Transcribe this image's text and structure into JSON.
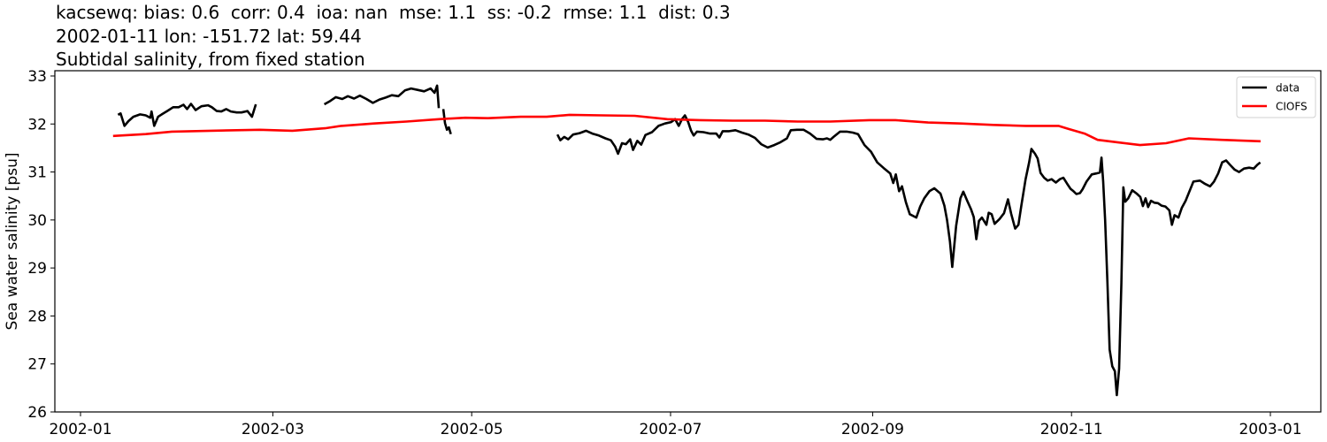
{
  "title": {
    "line1": "kacsewq: bias: 0.6  corr: 0.4  ioa: nan  mse: 1.1  ss: -0.2  rmse: 1.1  dist: 0.3",
    "line2": "2002-01-11 lon: -151.72 lat: 59.44",
    "line3": "Subtidal salinity, from fixed station"
  },
  "legend": {
    "items": [
      {
        "label": "data",
        "color": "#000000"
      },
      {
        "label": "CIOFS",
        "color": "#ff0000"
      }
    ]
  },
  "chart_data": {
    "type": "line",
    "title": "kacsewq: bias: 0.6  corr: 0.4  ioa: nan  mse: 1.1  ss: -0.2  rmse: 1.1  dist: 0.3 / 2002-01-11 lon: -151.72 lat: 59.44 / Subtidal salinity, from fixed station",
    "xlabel": "",
    "ylabel": "Sea water salinity [psu]",
    "ylim": [
      26,
      33.1
    ],
    "yticks": [
      26,
      27,
      28,
      29,
      30,
      31,
      32,
      33
    ],
    "xticks": [
      "2002-01",
      "2002-03",
      "2002-05",
      "2002-07",
      "2002-09",
      "2002-11",
      "2003-01"
    ],
    "xticks_day": [
      0,
      59,
      120,
      181,
      243,
      304,
      365
    ],
    "x_units": "days since 2002-01-01",
    "xlim_day": [
      -7.8,
      381.8
    ],
    "grid": false,
    "legend_position": "upper right",
    "series": [
      {
        "name": "data",
        "color": "#000000",
        "segments": [
          [
            [
              11.5,
              32.19
            ],
            [
              12.3,
              32.22
            ],
            [
              13.5,
              31.96
            ],
            [
              14.7,
              32.06
            ],
            [
              16.2,
              32.15
            ],
            [
              18.3,
              32.2
            ],
            [
              20.0,
              32.18
            ],
            [
              21.4,
              32.13
            ],
            [
              21.8,
              32.26
            ],
            [
              22.6,
              31.96
            ],
            [
              23.8,
              32.15
            ],
            [
              24.9,
              32.2
            ],
            [
              26.6,
              32.27
            ],
            [
              28.4,
              32.35
            ],
            [
              30.1,
              32.35
            ],
            [
              31.6,
              32.4
            ],
            [
              32.7,
              32.31
            ],
            [
              33.9,
              32.42
            ],
            [
              35.3,
              32.29
            ],
            [
              37.1,
              32.37
            ],
            [
              39.1,
              32.39
            ],
            [
              40.3,
              32.35
            ],
            [
              41.8,
              32.27
            ],
            [
              43.2,
              32.26
            ],
            [
              44.7,
              32.31
            ],
            [
              46.1,
              32.26
            ],
            [
              47.9,
              32.24
            ],
            [
              49.4,
              32.24
            ],
            [
              51.2,
              32.27
            ],
            [
              52.6,
              32.15
            ],
            [
              53.8,
              32.41
            ]
          ],
          [
            [
              74.8,
              32.41
            ],
            [
              76.6,
              32.48
            ],
            [
              78.3,
              32.56
            ],
            [
              80.3,
              32.52
            ],
            [
              82.0,
              32.58
            ],
            [
              83.9,
              32.53
            ],
            [
              85.7,
              32.59
            ],
            [
              87.7,
              32.52
            ],
            [
              89.7,
              32.44
            ],
            [
              91.7,
              32.51
            ],
            [
              93.6,
              32.55
            ],
            [
              95.5,
              32.6
            ],
            [
              97.5,
              32.58
            ],
            [
              99.5,
              32.7
            ],
            [
              101.4,
              32.74
            ],
            [
              103.4,
              32.71
            ],
            [
              105.4,
              32.68
            ],
            [
              107.4,
              32.74
            ],
            [
              108.6,
              32.65
            ],
            [
              109.4,
              32.8
            ],
            [
              109.9,
              32.33
            ]
          ],
          [
            [
              111.3,
              32.31
            ],
            [
              111.8,
              32.02
            ],
            [
              112.4,
              31.88
            ],
            [
              113.0,
              31.93
            ],
            [
              113.6,
              31.79
            ]
          ],
          [
            [
              146.3,
              31.78
            ],
            [
              147.2,
              31.66
            ],
            [
              148.4,
              31.73
            ],
            [
              149.6,
              31.68
            ],
            [
              151.1,
              31.78
            ],
            [
              153.1,
              31.81
            ],
            [
              155.1,
              31.86
            ],
            [
              157.0,
              31.8
            ],
            [
              159.0,
              31.76
            ],
            [
              161.0,
              31.7
            ],
            [
              162.7,
              31.66
            ],
            [
              164.0,
              31.53
            ],
            [
              164.9,
              31.38
            ],
            [
              166.1,
              31.6
            ],
            [
              167.3,
              31.58
            ],
            [
              168.6,
              31.68
            ],
            [
              169.5,
              31.46
            ],
            [
              170.8,
              31.65
            ],
            [
              172.0,
              31.57
            ],
            [
              173.3,
              31.77
            ],
            [
              175.3,
              31.83
            ],
            [
              177.3,
              31.96
            ],
            [
              179.3,
              32.01
            ],
            [
              181.2,
              32.04
            ],
            [
              182.4,
              32.1
            ],
            [
              183.5,
              31.96
            ],
            [
              184.5,
              32.1
            ],
            [
              185.4,
              32.18
            ],
            [
              186.4,
              32.04
            ],
            [
              187.3,
              31.86
            ],
            [
              188.1,
              31.76
            ],
            [
              189.1,
              31.84
            ],
            [
              191.1,
              31.83
            ],
            [
              193.1,
              31.8
            ],
            [
              195.0,
              31.8
            ],
            [
              196.0,
              31.72
            ],
            [
              197.0,
              31.85
            ],
            [
              199.0,
              31.85
            ],
            [
              200.9,
              31.87
            ],
            [
              202.9,
              31.82
            ],
            [
              204.9,
              31.78
            ],
            [
              206.9,
              31.71
            ],
            [
              208.8,
              31.58
            ],
            [
              210.8,
              31.51
            ],
            [
              212.8,
              31.56
            ],
            [
              214.7,
              31.62
            ],
            [
              216.7,
              31.7
            ],
            [
              217.9,
              31.87
            ],
            [
              219.8,
              31.88
            ],
            [
              221.8,
              31.88
            ],
            [
              223.8,
              31.8
            ],
            [
              225.8,
              31.69
            ],
            [
              227.7,
              31.68
            ],
            [
              229.0,
              31.7
            ],
            [
              230.0,
              31.67
            ],
            [
              231.0,
              31.73
            ],
            [
              233.0,
              31.84
            ],
            [
              235.0,
              31.84
            ],
            [
              236.9,
              31.82
            ],
            [
              238.5,
              31.79
            ],
            [
              240.5,
              31.56
            ],
            [
              242.5,
              31.42
            ],
            [
              244.4,
              31.2
            ],
            [
              246.4,
              31.08
            ],
            [
              248.4,
              30.97
            ],
            [
              249.3,
              30.77
            ],
            [
              250.1,
              30.95
            ],
            [
              251.1,
              30.6
            ],
            [
              252.0,
              30.7
            ],
            [
              253.2,
              30.37
            ],
            [
              254.4,
              30.12
            ],
            [
              256.4,
              30.05
            ],
            [
              257.6,
              30.28
            ],
            [
              258.8,
              30.45
            ],
            [
              260.4,
              30.6
            ],
            [
              261.9,
              30.66
            ],
            [
              263.8,
              30.55
            ],
            [
              265.0,
              30.3
            ],
            [
              265.8,
              30.0
            ],
            [
              266.7,
              29.55
            ],
            [
              267.4,
              29.02
            ],
            [
              268.6,
              29.88
            ],
            [
              269.9,
              30.45
            ],
            [
              270.8,
              30.59
            ],
            [
              272.0,
              30.4
            ],
            [
              273.2,
              30.22
            ],
            [
              274.0,
              30.06
            ],
            [
              274.8,
              29.6
            ],
            [
              275.6,
              29.98
            ],
            [
              276.5,
              30.05
            ],
            [
              277.9,
              29.9
            ],
            [
              278.6,
              30.15
            ],
            [
              279.5,
              30.12
            ],
            [
              280.4,
              29.92
            ],
            [
              281.9,
              30.02
            ],
            [
              283.3,
              30.14
            ],
            [
              284.5,
              30.43
            ],
            [
              285.5,
              30.13
            ],
            [
              286.7,
              29.82
            ],
            [
              287.7,
              29.9
            ],
            [
              288.6,
              30.3
            ],
            [
              289.9,
              30.85
            ],
            [
              291.0,
              31.2
            ],
            [
              291.7,
              31.48
            ],
            [
              292.8,
              31.38
            ],
            [
              293.6,
              31.28
            ],
            [
              294.5,
              30.98
            ],
            [
              295.6,
              30.88
            ],
            [
              296.7,
              30.82
            ],
            [
              297.9,
              30.85
            ],
            [
              299.2,
              30.78
            ],
            [
              300.4,
              30.85
            ],
            [
              301.5,
              30.88
            ],
            [
              302.6,
              30.76
            ],
            [
              303.7,
              30.65
            ],
            [
              304.6,
              30.6
            ],
            [
              305.5,
              30.54
            ],
            [
              306.6,
              30.56
            ],
            [
              307.4,
              30.64
            ],
            [
              308.6,
              30.8
            ],
            [
              310.2,
              30.95
            ],
            [
              311.6,
              30.97
            ],
            [
              312.7,
              30.99
            ],
            [
              313.2,
              31.3
            ],
            [
              313.7,
              30.8
            ],
            [
              314.3,
              30.0
            ],
            [
              315.0,
              28.7
            ],
            [
              315.7,
              27.3
            ],
            [
              316.5,
              26.95
            ],
            [
              317.3,
              26.85
            ],
            [
              317.9,
              26.35
            ],
            [
              318.6,
              26.9
            ],
            [
              319.3,
              28.7
            ],
            [
              319.9,
              30.68
            ],
            [
              320.5,
              30.38
            ],
            [
              321.4,
              30.45
            ],
            [
              322.6,
              30.62
            ],
            [
              324.0,
              30.55
            ],
            [
              325.1,
              30.48
            ],
            [
              325.9,
              30.29
            ],
            [
              326.7,
              30.45
            ],
            [
              327.5,
              30.27
            ],
            [
              328.4,
              30.4
            ],
            [
              329.4,
              30.36
            ],
            [
              330.5,
              30.35
            ],
            [
              331.6,
              30.3
            ],
            [
              332.8,
              30.28
            ],
            [
              334.0,
              30.2
            ],
            [
              334.8,
              29.9
            ],
            [
              335.6,
              30.1
            ],
            [
              336.8,
              30.05
            ],
            [
              337.8,
              30.25
            ],
            [
              339.0,
              30.4
            ],
            [
              340.2,
              30.6
            ],
            [
              341.4,
              30.8
            ],
            [
              343.4,
              30.82
            ],
            [
              345.0,
              30.75
            ],
            [
              346.5,
              30.7
            ],
            [
              347.7,
              30.8
            ],
            [
              349.0,
              30.97
            ],
            [
              350.2,
              31.2
            ],
            [
              351.4,
              31.24
            ],
            [
              352.6,
              31.15
            ],
            [
              354.0,
              31.05
            ],
            [
              355.4,
              31.0
            ],
            [
              356.9,
              31.07
            ],
            [
              358.5,
              31.09
            ],
            [
              359.9,
              31.07
            ],
            [
              361.0,
              31.15
            ],
            [
              361.9,
              31.2
            ]
          ]
        ]
      },
      {
        "name": "CIOFS",
        "color": "#ff0000",
        "x_day": [
          10,
          20,
          28,
          40,
          55,
          65,
          75,
          80,
          90,
          100,
          110,
          118,
          125,
          135,
          143,
          150,
          160,
          170,
          180,
          190,
          200,
          210,
          220,
          230,
          242,
          250,
          260,
          270,
          280,
          290,
          300,
          303,
          308,
          312,
          318,
          325,
          333,
          340,
          350,
          362
        ],
        "values": [
          31.75,
          31.79,
          31.84,
          31.86,
          31.88,
          31.86,
          31.91,
          31.96,
          32.01,
          32.05,
          32.1,
          32.13,
          32.12,
          32.15,
          32.15,
          32.19,
          32.18,
          32.17,
          32.1,
          32.08,
          32.07,
          32.07,
          32.05,
          32.05,
          32.08,
          32.08,
          32.03,
          32.01,
          31.98,
          31.96,
          31.96,
          31.9,
          31.8,
          31.67,
          31.62,
          31.56,
          31.6,
          31.7,
          31.67,
          31.64
        ]
      }
    ]
  }
}
